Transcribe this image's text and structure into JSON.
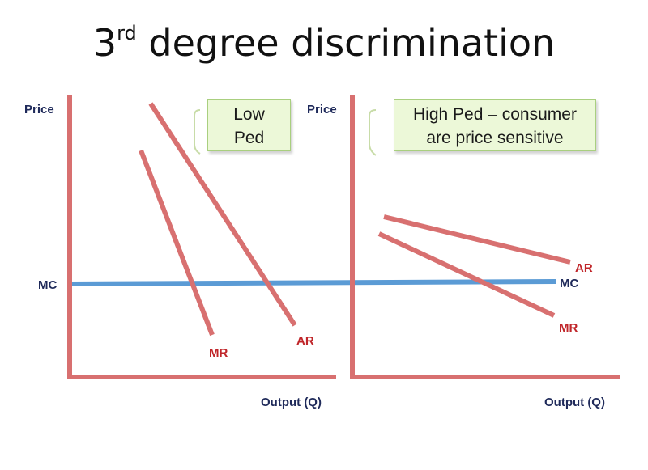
{
  "title": {
    "base": "3",
    "superscript": "rd",
    "rest": " degree discrimination"
  },
  "left_panel": {
    "y_axis_label": "Price",
    "x_axis_label": "Output (Q)",
    "mc_label": "MC",
    "mr_label": "MR",
    "ar_label": "AR",
    "callout_line1": "Low",
    "callout_line2": "Ped"
  },
  "right_panel": {
    "y_axis_label": "Price",
    "x_axis_label": "Output (Q)",
    "mc_label": "MC",
    "ar_label": "AR",
    "mr_label": "MR",
    "callout_line1": "High Ped – consumer",
    "callout_line2": "are price sensitive"
  },
  "colors": {
    "axis": "#d87070",
    "demand_curves": "#d87070",
    "mc_line": "#5b9bd5",
    "callout_fill": "#ecf8d8",
    "callout_border": "#a9cf7f",
    "label_dark": "#1f2a5a",
    "label_red": "#c0262a"
  }
}
